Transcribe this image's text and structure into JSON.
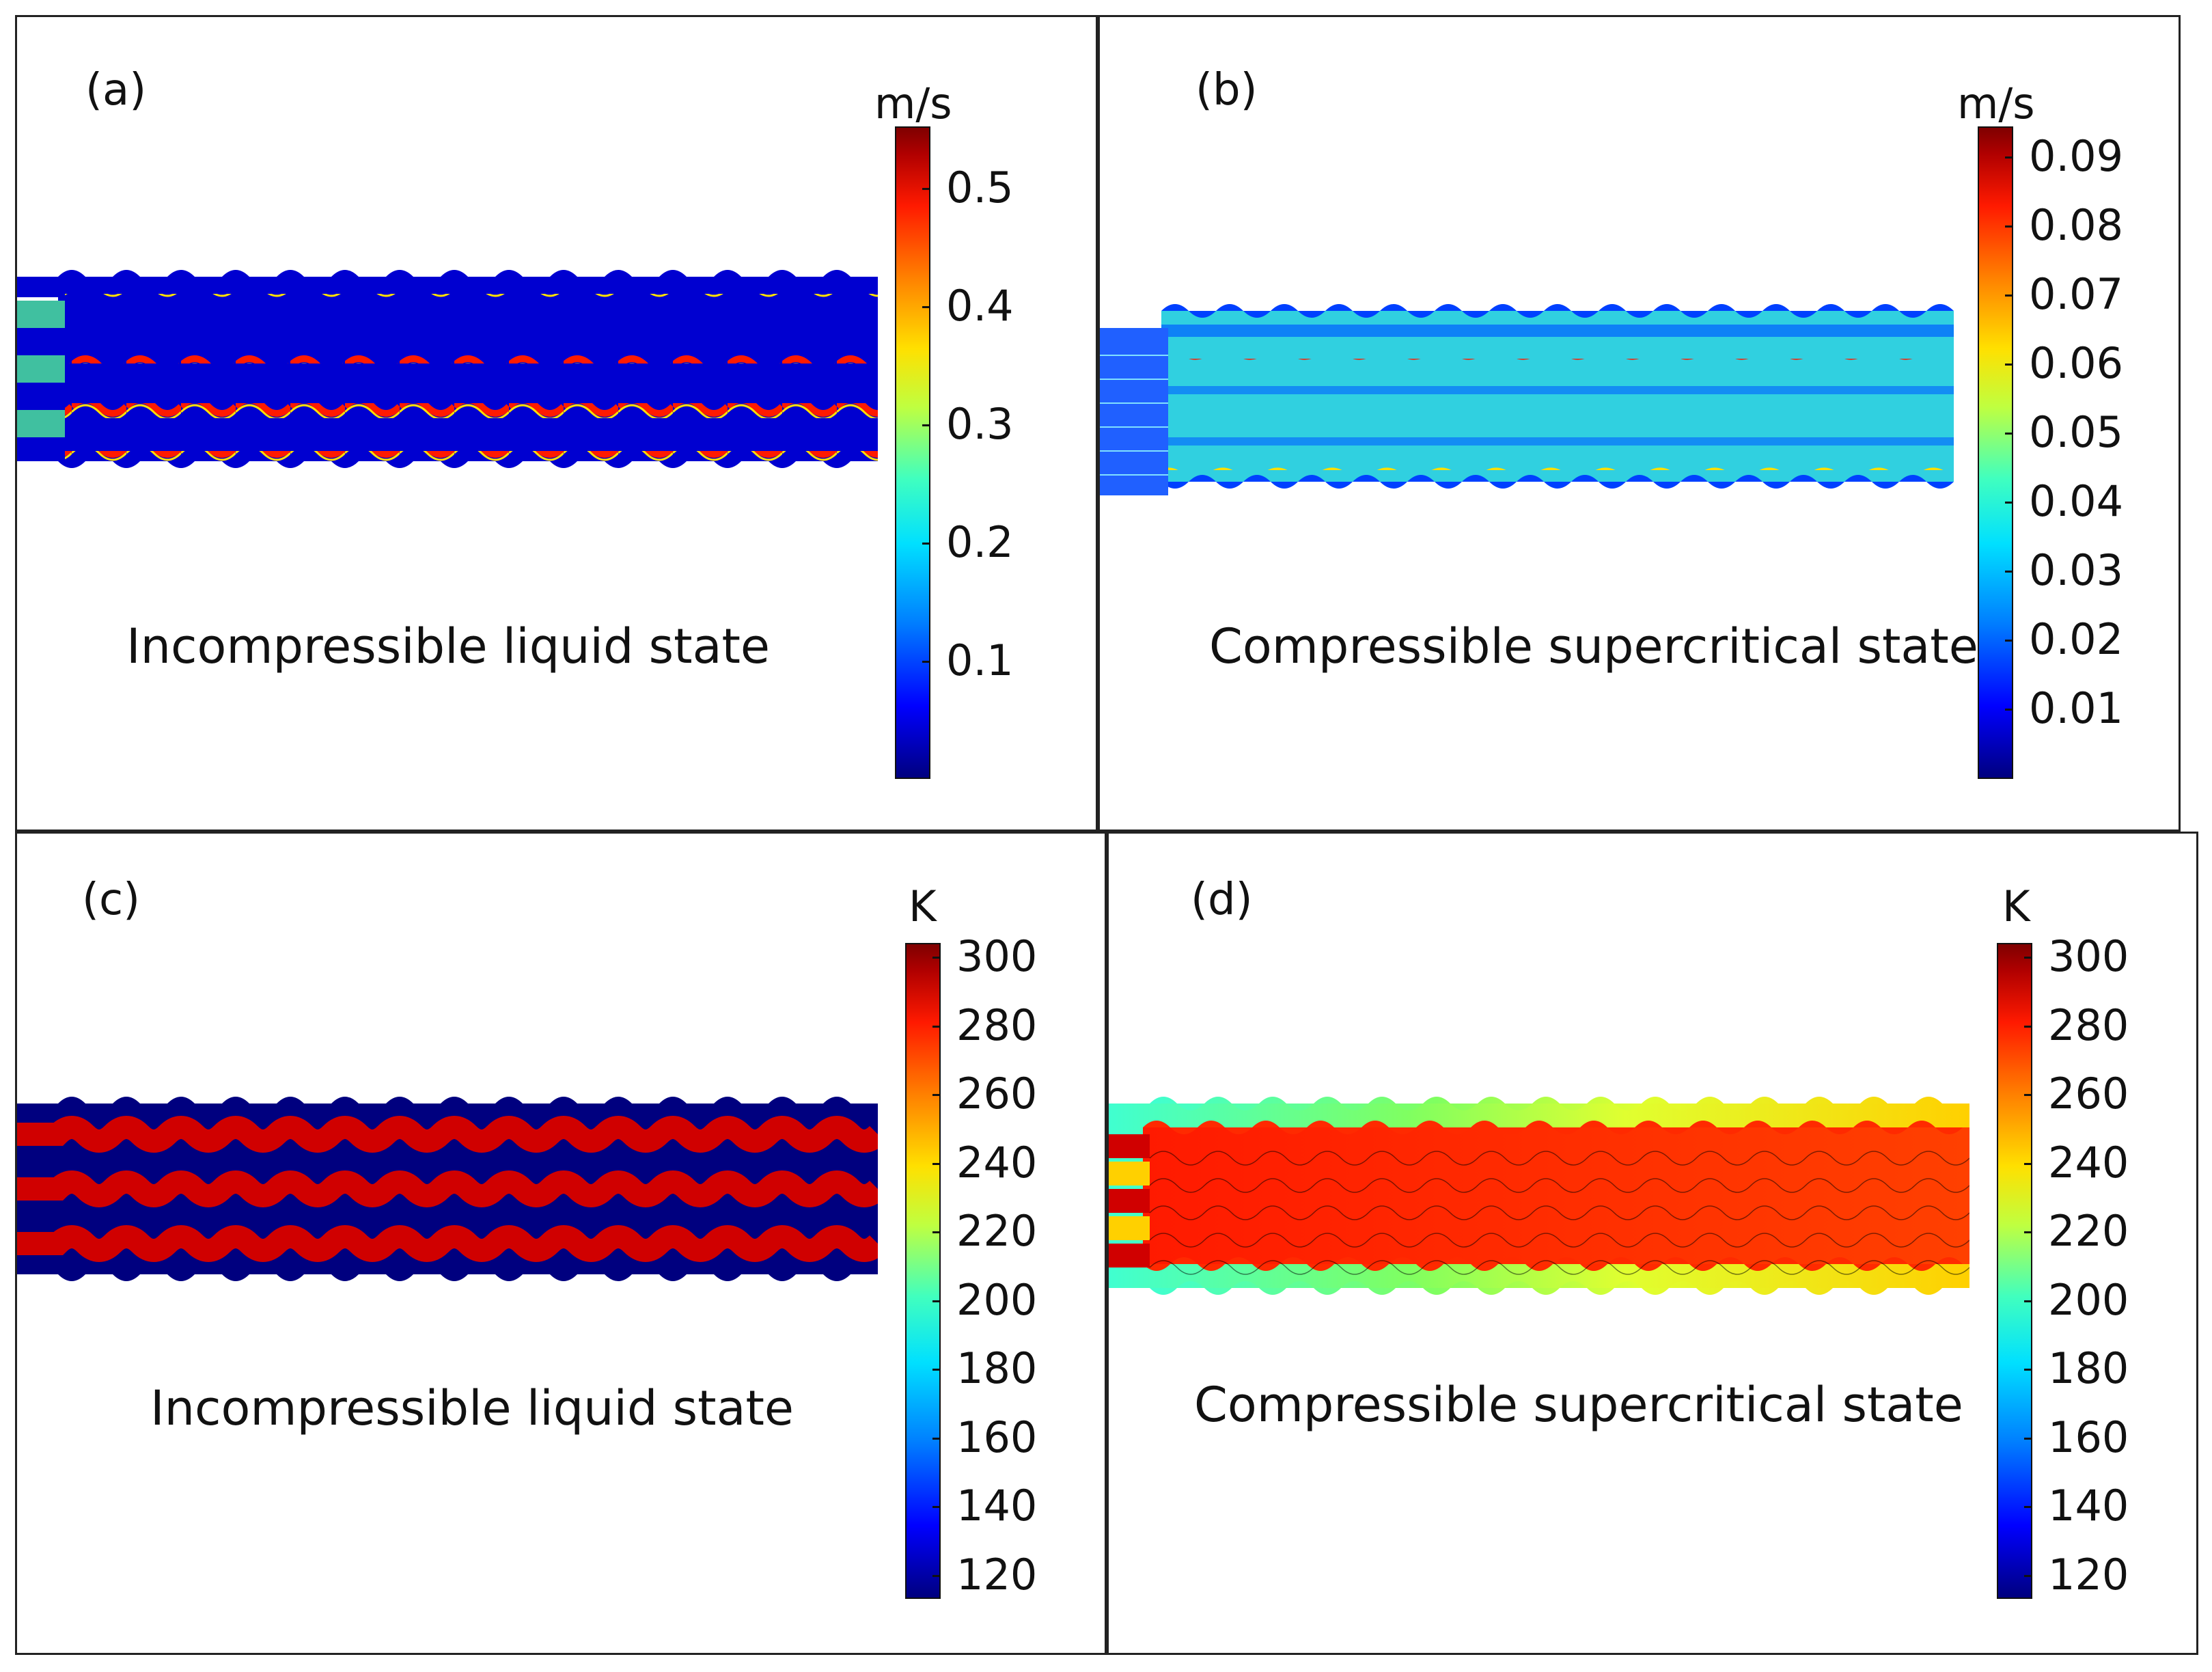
{
  "panels": [
    {
      "id": "a",
      "label": "(a)",
      "caption": "Incompressible liquid state",
      "unit": "m/s",
      "ticks": [
        "0.5",
        "0.4",
        "0.3",
        "0.2",
        "0.1"
      ]
    },
    {
      "id": "b",
      "label": "(b)",
      "caption": "Compressible supercritical state",
      "unit": "m/s",
      "ticks": [
        "0.09",
        "0.08",
        "0.07",
        "0.06",
        "0.05",
        "0.04",
        "0.03",
        "0.02",
        "0.01"
      ]
    },
    {
      "id": "c",
      "label": "(c)",
      "caption": "Incompressible liquid state",
      "unit": "K",
      "ticks": [
        "300",
        "280",
        "260",
        "240",
        "220",
        "200",
        "180",
        "160",
        "140",
        "120"
      ]
    },
    {
      "id": "d",
      "label": "(d)",
      "caption": "Compressible supercritical state",
      "unit": "K",
      "ticks": [
        "300",
        "280",
        "260",
        "240",
        "220",
        "200",
        "180",
        "160",
        "140",
        "120"
      ]
    }
  ],
  "colors": {
    "dark_blue": "#00007f",
    "blue": "#0000ff",
    "cyan": "#00e0ff",
    "green": "#40ff80",
    "yellow": "#ffe000",
    "orange": "#ff8000",
    "red": "#ff1a00",
    "dark_red": "#a00000"
  }
}
